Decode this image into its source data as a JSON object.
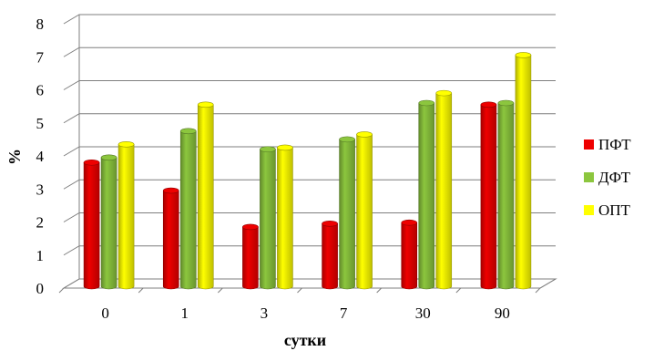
{
  "chart_data": {
    "type": "bar",
    "title": "",
    "xlabel": "сутки",
    "ylabel": "%",
    "ylim": [
      0,
      8
    ],
    "yticks": [
      "0",
      "1",
      "2",
      "3",
      "4",
      "5",
      "6",
      "7",
      "8"
    ],
    "categories": [
      "0",
      "1",
      "3",
      "7",
      "30",
      "90"
    ],
    "grid": true,
    "legend_position": "right",
    "series": [
      {
        "name": "ПФТ",
        "color": "#ee0000",
        "values": [
          3.8,
          2.95,
          1.85,
          1.95,
          1.98,
          5.55
        ]
      },
      {
        "name": "ДФТ",
        "color": "#8cc63e",
        "values": [
          3.95,
          4.75,
          4.2,
          4.5,
          5.6,
          5.6
        ]
      },
      {
        "name": "ОПТ",
        "color": "#ffff00",
        "values": [
          4.35,
          5.55,
          4.25,
          4.65,
          5.9,
          7.05
        ]
      }
    ]
  }
}
